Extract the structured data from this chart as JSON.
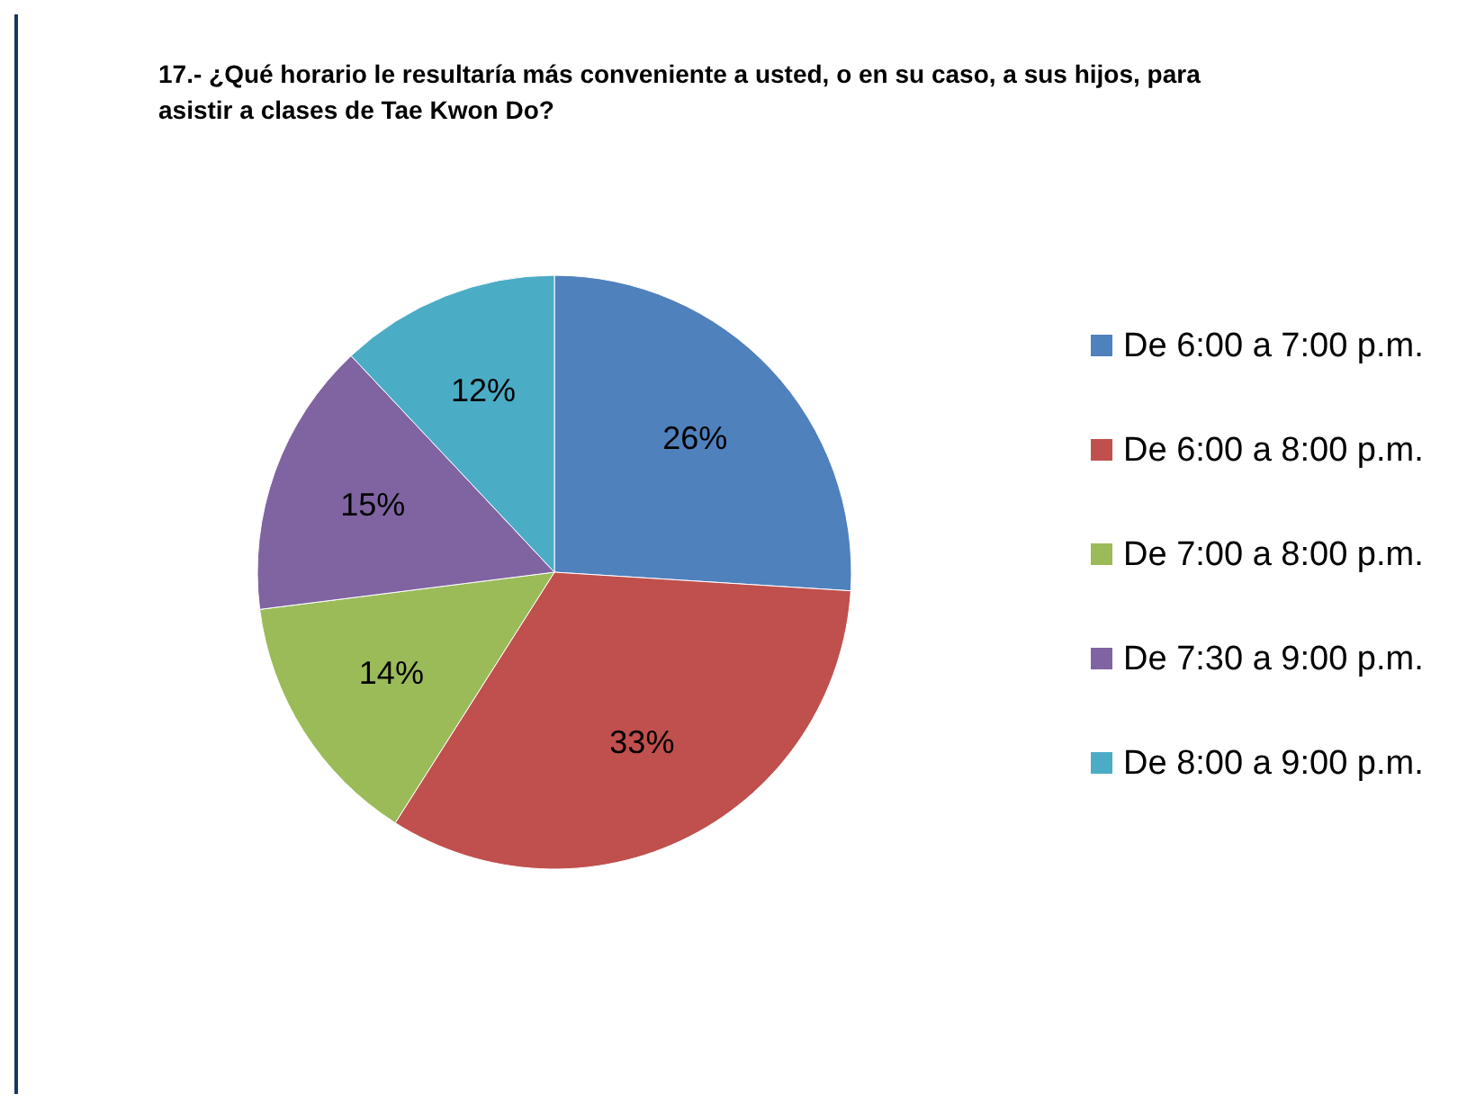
{
  "chart_data": {
    "type": "pie",
    "title": "17.- ¿Qué horario le resultaría más conveniente a usted, o en su caso, a sus hijos, para asistir a clases de Tae Kwon Do?",
    "categories": [
      "De 6:00 a 7:00 p.m.",
      "De 6:00 a 8:00 p.m.",
      "De 7:00 a 8:00 p.m.",
      "De 7:30 a 9:00 p.m.",
      "De 8:00 a 9:00 p.m."
    ],
    "values": [
      26,
      33,
      14,
      15,
      12
    ],
    "colors": [
      "#4f81bd",
      "#c0504d",
      "#9bbb59",
      "#8064a2",
      "#4bacc6"
    ],
    "value_labels": [
      "26%",
      "33%",
      "14%",
      "15%",
      "12%"
    ],
    "legend": "right"
  }
}
